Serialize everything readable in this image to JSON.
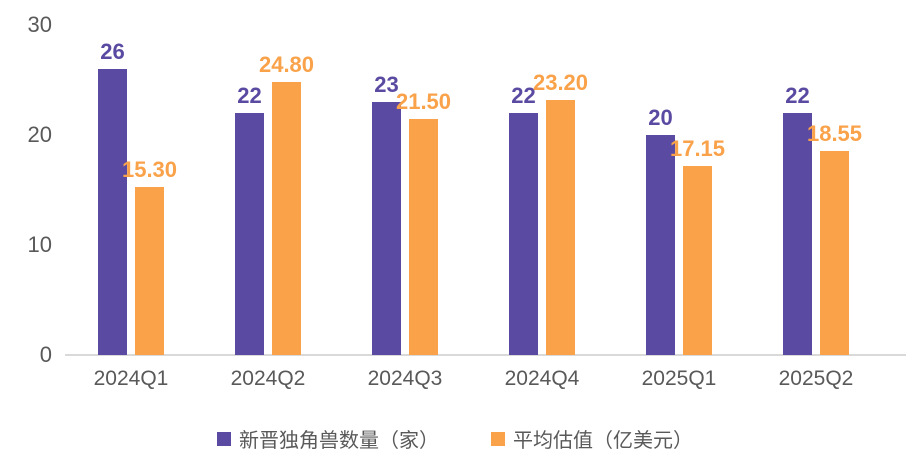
{
  "chart_data": {
    "type": "bar",
    "title": "",
    "xlabel": "",
    "ylabel": "",
    "categories": [
      "2024Q1",
      "2024Q2",
      "2024Q3",
      "2024Q4",
      "2025Q1",
      "2025Q2"
    ],
    "series": [
      {
        "name": "新晋独角兽数量（家）",
        "color": "#5b4aa1",
        "values": [
          26,
          22,
          23,
          22,
          20,
          22
        ],
        "labels": [
          "26",
          "22",
          "23",
          "22",
          "20",
          "22"
        ]
      },
      {
        "name": "平均估值（亿美元）",
        "color": "#f9a24a",
        "values": [
          15.3,
          24.8,
          21.5,
          23.2,
          17.15,
          18.55
        ],
        "labels": [
          "15.30",
          "24.80",
          "21.50",
          "23.20",
          "17.15",
          "18.55"
        ]
      }
    ],
    "ylim": [
      0,
      30
    ],
    "yticks": [
      0,
      10,
      20,
      30
    ],
    "grid": false,
    "legend_position": "bottom",
    "axis_text_color": "#595959",
    "axis_line_color": "#d9d9d9",
    "background_color": "#ffffff"
  }
}
